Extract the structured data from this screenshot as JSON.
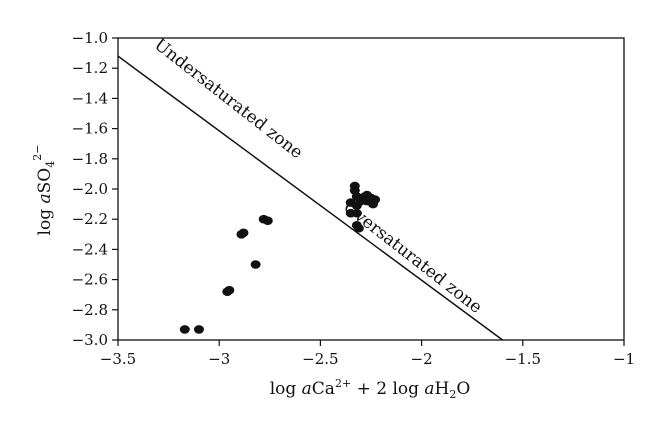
{
  "chart_data": {
    "type": "scatter",
    "xlim": [
      -3.5,
      -1
    ],
    "ylim": [
      -3.0,
      -1.0
    ],
    "xticks": [
      "−3.5",
      "−3",
      "−2.5",
      "−2",
      "−1.5",
      "−1"
    ],
    "yticks": [
      "−1.0",
      "−1.2",
      "−1.4",
      "−1.6",
      "−1.8",
      "−2.0",
      "−2.2",
      "−2.4",
      "−2.6",
      "−2.8",
      "−3.0"
    ],
    "xlabel": {
      "pre": "log ",
      "a": "a",
      "species": "Ca",
      "sup": "2+",
      "mid": " + 2 log ",
      "a2": "a",
      "species2": "H",
      "sub": "2",
      "post": "O"
    },
    "ylabel": {
      "pre": "log ",
      "a": "a",
      "species": "SO",
      "sub": "4",
      "sup": "2−"
    },
    "boundary_line": {
      "points": [
        [
          -3.5,
          -1.12
        ],
        [
          -1.6,
          -3.0
        ]
      ]
    },
    "annotations": [
      {
        "text": "Undersaturated zone",
        "x": -2.97,
        "y": -1.43,
        "angle": 38
      },
      {
        "text": "Oversaturated zone",
        "x": -2.06,
        "y": -2.48,
        "angle": 38
      }
    ],
    "points": [
      {
        "x": -3.17,
        "y": -2.93
      },
      {
        "x": -3.1,
        "y": -2.93
      },
      {
        "x": -2.96,
        "y": -2.68
      },
      {
        "x": -2.95,
        "y": -2.67
      },
      {
        "x": -2.89,
        "y": -2.3
      },
      {
        "x": -2.88,
        "y": -2.29
      },
      {
        "x": -2.82,
        "y": -2.5
      },
      {
        "x": -2.78,
        "y": -2.2
      },
      {
        "x": -2.76,
        "y": -2.21
      },
      {
        "x": -2.35,
        "y": -2.09
      },
      {
        "x": -2.35,
        "y": -2.16
      },
      {
        "x": -2.33,
        "y": -2.01
      },
      {
        "x": -2.33,
        "y": -1.98
      },
      {
        "x": -2.32,
        "y": -2.05
      },
      {
        "x": -2.32,
        "y": -2.11
      },
      {
        "x": -2.32,
        "y": -2.16
      },
      {
        "x": -2.32,
        "y": -2.24
      },
      {
        "x": -2.31,
        "y": -2.26
      },
      {
        "x": -2.3,
        "y": -2.08
      },
      {
        "x": -2.29,
        "y": -2.06
      },
      {
        "x": -2.28,
        "y": -2.05
      },
      {
        "x": -2.27,
        "y": -2.08
      },
      {
        "x": -2.27,
        "y": -2.04
      },
      {
        "x": -2.25,
        "y": -2.06
      },
      {
        "x": -2.24,
        "y": -2.1
      },
      {
        "x": -2.23,
        "y": -2.07
      }
    ]
  }
}
